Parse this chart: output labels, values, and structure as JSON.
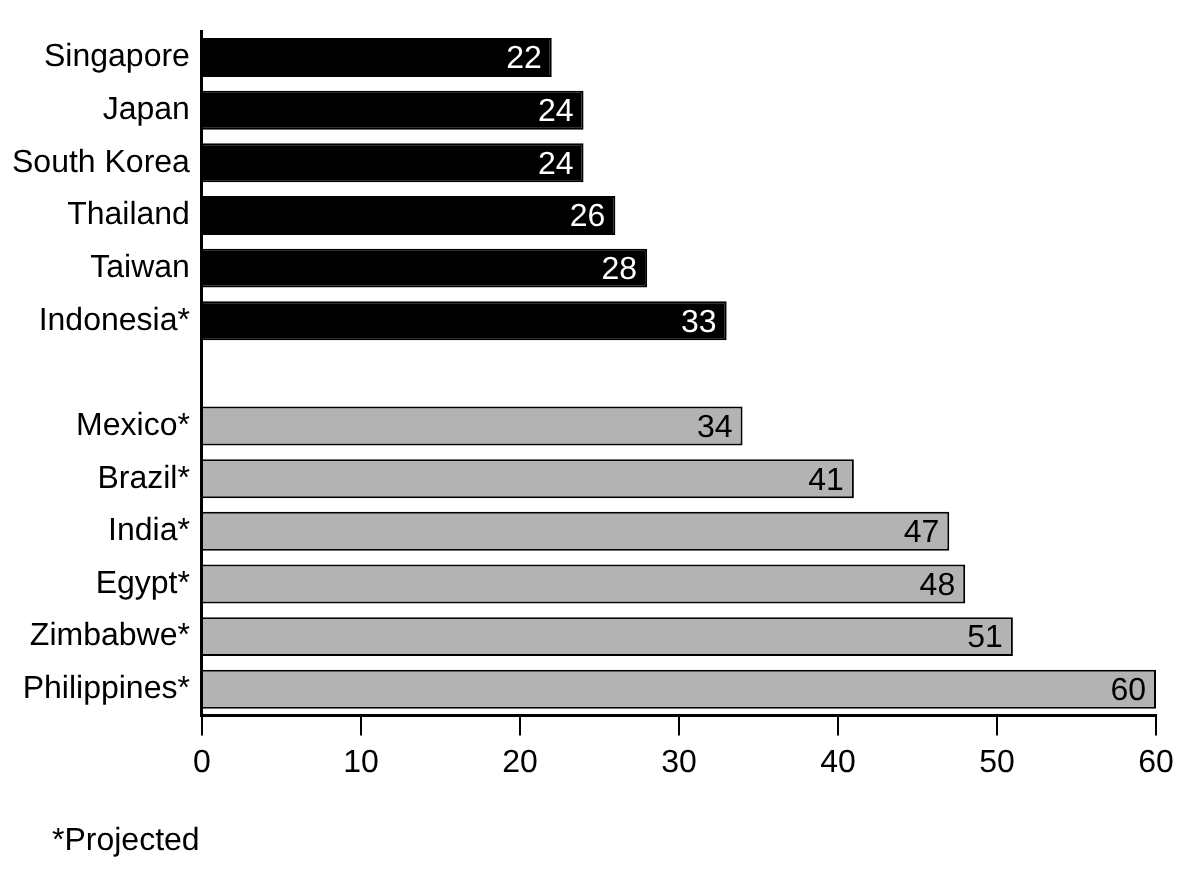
{
  "chart_data": {
    "type": "bar",
    "orientation": "horizontal",
    "categories": [
      "Singapore",
      "Japan",
      "South Korea",
      "Thailand",
      "Taiwan",
      "Indonesia*",
      null,
      "Mexico*",
      "Brazil*",
      "India*",
      "Egypt*",
      "Zimbabwe*",
      "Philippines*"
    ],
    "values": [
      22,
      24,
      24,
      26,
      28,
      33,
      null,
      34,
      41,
      47,
      48,
      51,
      60
    ],
    "colors": [
      "#000000",
      "#000000",
      "#000000",
      "#000000",
      "#000000",
      "#000000",
      null,
      "#b3b3b3",
      "#b3b3b3",
      "#b3b3b3",
      "#b3b3b3",
      "#b3b3b3",
      "#b3b3b3"
    ],
    "xlim": [
      0,
      60
    ],
    "xticks": [
      0,
      10,
      20,
      30,
      40,
      50,
      60
    ],
    "data_labels": true,
    "grid": false,
    "legend": false,
    "annotations": [
      "*Projected"
    ]
  }
}
